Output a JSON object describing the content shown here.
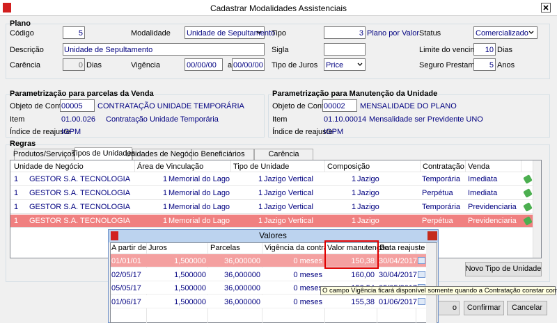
{
  "window": {
    "title": "Cadastrar Modalidades Assistenciais"
  },
  "plano": {
    "heading": "Plano",
    "codigo": {
      "label": "Código",
      "value": "5"
    },
    "modalidade": {
      "label": "Modalidade",
      "value": "Unidade de Sepultamento"
    },
    "tipo": {
      "label": "Tipo",
      "value": "3",
      "description": "Plano por Valor"
    },
    "status": {
      "label": "Status",
      "value": "Comercializado"
    },
    "descricao": {
      "label": "Descrição",
      "value": "Unidade de Sepultamento"
    },
    "sigla": {
      "label": "Sigla"
    },
    "limite_vencimento": {
      "label": "Limite do vencimento",
      "value": "10",
      "unit": "Dias"
    },
    "carencia": {
      "label": "Carência",
      "value": "0",
      "unit": "Dias"
    },
    "vigencia": {
      "label": "Vigência",
      "from": "00/00/00",
      "separator": "a",
      "to": "00/00/00"
    },
    "tipo_juros": {
      "label": "Tipo de Juros",
      "value": "Price"
    },
    "seguro_prestamista": {
      "label": "Seguro Prestamista",
      "value": "5",
      "unit": "Anos"
    }
  },
  "venda": {
    "heading": "Parametrização para parcelas da Venda",
    "objeto_label": "Objeto de Contrato",
    "objeto_code": "00005",
    "objeto_name": "CONTRATAÇÃO UNIDADE TEMPORÁRIA",
    "item_label": "Item",
    "item_code": "01.00.026",
    "item_name": "Contratação Unidade Temporária",
    "indice_label": "Índice de reajuste",
    "indice": "IGPM"
  },
  "manutencao": {
    "heading": "Parametrização para Manutenção da Unidade",
    "objeto_label": "Objeto de Contrato",
    "objeto_code": "00002",
    "objeto_name": "MENSALIDADE DO PLANO",
    "item_label": "Item",
    "item_code": "01.10.00014",
    "item_name": "Mensalidade ser Previdente UNO",
    "indice_label": "Índice de reajuste",
    "indice": "IGPM"
  },
  "regras": {
    "heading": "Regras",
    "tabs": [
      "Produtos/Serviços",
      "Tipos de Unidades",
      "Unidades de Negócio",
      "Beneficiários",
      "Carência"
    ],
    "active_tab": 1,
    "columns": [
      "Unidade de Negócio",
      "Área de Vinculação",
      "Tipo de Unidade",
      "Composição",
      "Contratação",
      "Venda"
    ],
    "rows": [
      [
        "1",
        "GESTOR S.A. TECNOLOGIA DA INFORMA",
        "1",
        "Memorial do Lago",
        "1",
        "Jazigo Vertical",
        "1",
        "Jazigo",
        "Temporária",
        "Imediata"
      ],
      [
        "1",
        "GESTOR S.A. TECNOLOGIA DA INFORMA",
        "1",
        "Memorial do Lago",
        "1",
        "Jazigo Vertical",
        "1",
        "Jazigo",
        "Perpétua",
        "Imediata"
      ],
      [
        "1",
        "GESTOR S.A. TECNOLOGIA DA INFORMA",
        "1",
        "Memorial do Lago",
        "1",
        "Jazigo Vertical",
        "1",
        "Jazigo",
        "Temporária",
        "Previdenciaria"
      ],
      [
        "1",
        "GESTOR S.A. TECNOLOGIA DA INFORMA",
        "1",
        "Memorial do Lago",
        "1",
        "Jazigo Vertical",
        "1",
        "Jazigo",
        "Perpétua",
        "Previdenciaria"
      ]
    ],
    "selected_row": 3,
    "new_button": "Novo Tipo de Unidade"
  },
  "buttons": [
    "o",
    "Confirmar",
    "Cancelar"
  ],
  "valores": {
    "title": "Valores",
    "columns": [
      "A partir de",
      "Juros",
      "Parcelas",
      "Vigência da contratação",
      "Valor manutenção",
      "Data reajuste"
    ],
    "rows": [
      [
        "01/01/01",
        "1,500000",
        "36,000000",
        "0 meses",
        "150,38",
        "30/04/2017"
      ],
      [
        "02/05/17",
        "1,500000",
        "36,000000",
        "0 meses",
        "160,00",
        "30/04/2017"
      ],
      [
        "05/05/17",
        "1,500000",
        "36,000000",
        "0 meses",
        "152,54",
        "05/05/2017"
      ],
      [
        "01/06/17",
        "1,500000",
        "36,000000",
        "0 meses",
        "155,38",
        "01/06/2017"
      ]
    ],
    "selected_row": 0
  },
  "tooltip": "O campo Vigência ficará disponível somente quando a Contratação constar como Temporária"
}
